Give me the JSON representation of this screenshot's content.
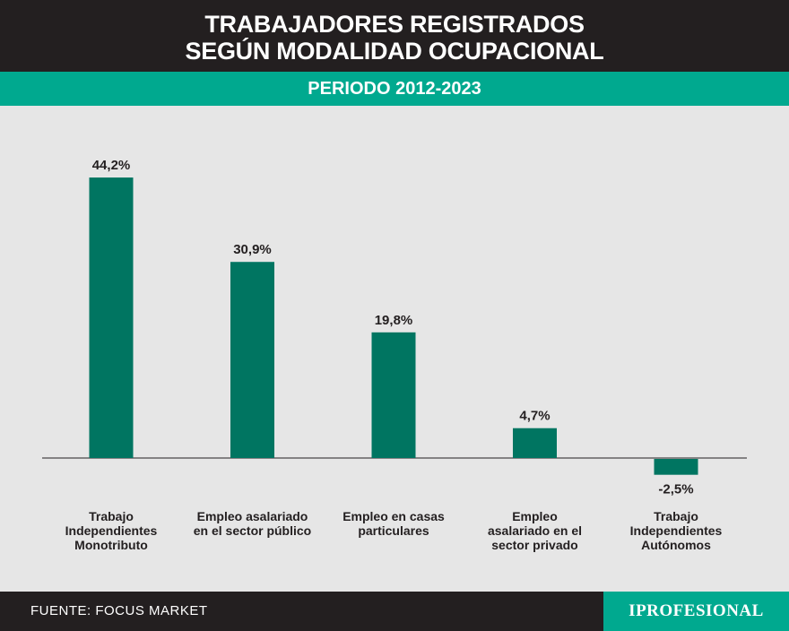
{
  "header": {
    "title_line1": "TRABAJADORES REGISTRADOS",
    "title_line2": "SEGÚN MODALIDAD OCUPACIONAL",
    "subtitle": "PERIODO 2012-2023"
  },
  "chart_data": {
    "type": "bar",
    "categories": [
      [
        "Trabajo",
        "Independientes",
        "Monotributo"
      ],
      [
        "Empleo asalariado",
        "en el sector público"
      ],
      [
        "Empleo en casas",
        "particulares"
      ],
      [
        "Empleo",
        "asalariado en el",
        "sector privado"
      ],
      [
        "Trabajo",
        "Independientes",
        "Autónomos"
      ]
    ],
    "values": [
      44.2,
      30.9,
      19.8,
      4.7,
      -2.5
    ],
    "value_labels": [
      "44,2%",
      "30,9%",
      "19,8%",
      "4,7%",
      "-2,5%"
    ],
    "title": "TRABAJADORES REGISTRADOS SEGÚN MODALIDAD OCUPACIONAL",
    "subtitle": "PERIODO 2012-2023",
    "xlabel": "",
    "ylabel": "",
    "ylim": [
      -2.5,
      44.2
    ],
    "grid": false,
    "legend": "none",
    "bar_color": "#007561"
  },
  "footer": {
    "source": "FUENTE: FOCUS MARKET",
    "logo": "IPROFESIONAL"
  },
  "colors": {
    "header_bg": "#231f20",
    "accent": "#00a98f",
    "bar": "#007561",
    "background": "#e6e6e6"
  }
}
